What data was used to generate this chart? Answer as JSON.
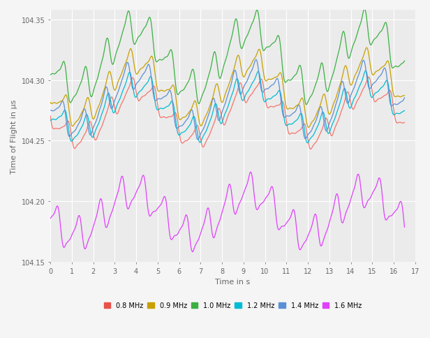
{
  "title": "",
  "xlabel": "Time in s",
  "ylabel": "Time of Flight in µs",
  "xlim": [
    0,
    17
  ],
  "ylim_bottom": -104.155,
  "ylim_top": -104.358,
  "yticks": [
    -104.35,
    -104.3,
    -104.25,
    -104.2,
    -104.15
  ],
  "xticks": [
    0,
    1,
    2,
    3,
    4,
    5,
    6,
    7,
    8,
    9,
    10,
    11,
    12,
    13,
    14,
    15,
    16,
    17
  ],
  "background_color": "#ebebeb",
  "grid_color": "#ffffff",
  "fig_background": "#f5f5f5",
  "frequencies": [
    "0.8 MHz",
    "0.9 MHz",
    "1.0 MHz",
    "1.2 MHz",
    "1.4 MHz",
    "1.6 MHz"
  ],
  "colors": [
    "#f4756b",
    "#c8a000",
    "#3cb043",
    "#00bcd4",
    "#5b8fd5",
    "#e040fb"
  ],
  "legend_colors": [
    "#e8524a",
    "#c8a000",
    "#3cb043",
    "#00bcd4",
    "#5b8fd5",
    "#e040fb"
  ],
  "t_end": 16.5,
  "n_points": 3000,
  "freq_resp": 0.185,
  "freq_card": 1.0
}
